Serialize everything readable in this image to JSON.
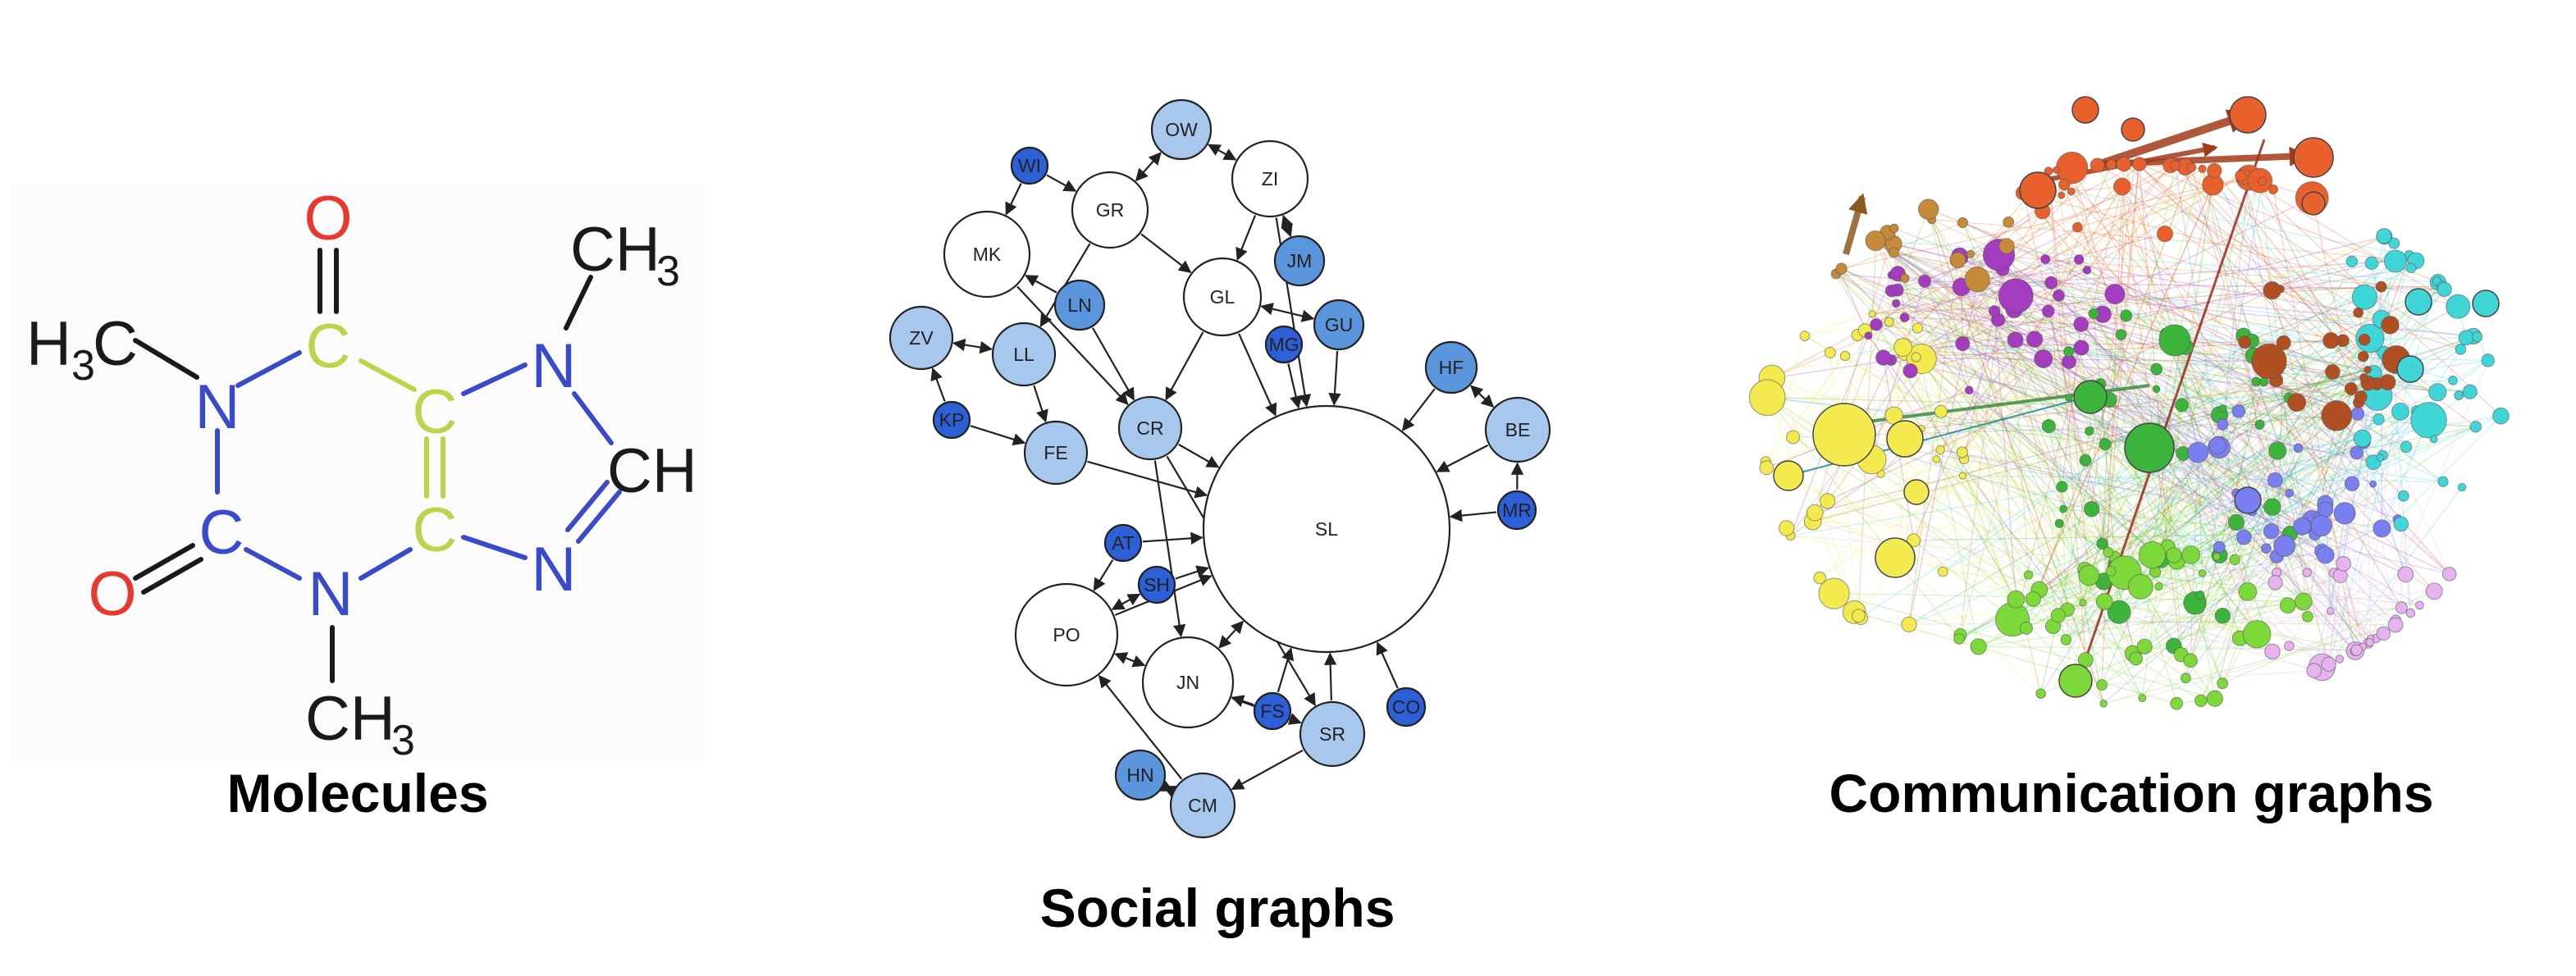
{
  "captions": {
    "molecules": "Molecules",
    "social": "Social graphs",
    "communication": "Communication graphs"
  },
  "molecule": {
    "colors": {
      "oxygen": "#e8392f",
      "nitrogen": "#3a4bc9",
      "carbon": "#b9d54a",
      "bond": "#1a1a1a"
    },
    "atoms": {
      "o_top": "O",
      "c_top": "C",
      "ch3_right_main": "CH",
      "ch3_right_sub": "3",
      "h3c_left_a": "H",
      "h3c_left_sub": "3",
      "h3c_left_b": "C",
      "n_left": "N",
      "c_mid_top": "C",
      "n_right_top": "N",
      "ch_right": "CH",
      "o_left": "O",
      "c_left": "C",
      "c_mid_bottom": "C",
      "n_right_bottom": "N",
      "n_bottom": "N",
      "ch3_bottom_main": "CH",
      "ch3_bottom_sub": "3"
    }
  },
  "social_graph": {
    "colors": {
      "white": "#ffffff",
      "light": "#a7c8ec",
      "medium": "#5b95db",
      "dark": "#2d5fd6",
      "edge": "#222222"
    },
    "nodes": {
      "OW": "OW",
      "WI": "WI",
      "ZI": "ZI",
      "GR": "GR",
      "MK": "MK",
      "JM": "JM",
      "GL": "GL",
      "LN": "LN",
      "ZV": "ZV",
      "GU": "GU",
      "MG": "MG",
      "LL": "LL",
      "HF": "HF",
      "KP": "KP",
      "CR": "CR",
      "BE": "BE",
      "FE": "FE",
      "SL": "SL",
      "MR": "MR",
      "AT": "AT",
      "SH": "SH",
      "PO": "PO",
      "JN": "JN",
      "FS": "FS",
      "CO": "CO",
      "SR": "SR",
      "HN": "HN",
      "CM": "CM"
    }
  },
  "communication_graph": {
    "colors": [
      "#f2ea4f",
      "#a43cc0",
      "#e8612c",
      "#3cb43c",
      "#7dd93a",
      "#7a7ff0",
      "#40d6d8",
      "#b04f22",
      "#e6b3ef",
      "#c58a3a"
    ]
  }
}
